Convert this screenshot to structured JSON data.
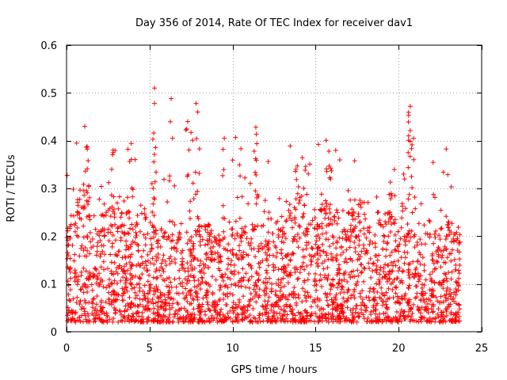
{
  "chart_data": {
    "type": "scatter",
    "title": "Day 356 of 2014, Rate Of TEC Index for receiver dav1",
    "xlabel": "GPS time / hours",
    "ylabel": "ROTI / TECUs",
    "xlim": [
      0,
      25
    ],
    "ylim": [
      0,
      0.6
    ],
    "xticks": [
      0,
      5,
      10,
      15,
      20,
      25
    ],
    "xtick_labels": [
      "0",
      "5",
      "10",
      "15",
      "20",
      "25"
    ],
    "yticks": [
      0,
      0.1,
      0.2,
      0.3,
      0.4,
      0.5,
      0.6
    ],
    "ytick_labels": [
      "0",
      "0.1",
      "0.2",
      "0.3",
      "0.4",
      "0.5",
      "0.6"
    ],
    "grid": true,
    "marker": "plus",
    "series": [
      {
        "name": "ROTI",
        "color": "#ff0000",
        "x_range": [
          0,
          23.7
        ],
        "typical_band": [
          0.02,
          0.2
        ],
        "peaks": [
          {
            "x": 1.1,
            "y": 0.43
          },
          {
            "x": 1.2,
            "y": 0.386
          },
          {
            "x": 1.3,
            "y": 0.358
          },
          {
            "x": 2.8,
            "y": 0.38
          },
          {
            "x": 3.7,
            "y": 0.382
          },
          {
            "x": 3.9,
            "y": 0.394
          },
          {
            "x": 5.3,
            "y": 0.51
          },
          {
            "x": 5.3,
            "y": 0.478
          },
          {
            "x": 5.2,
            "y": 0.403
          },
          {
            "x": 6.3,
            "y": 0.488
          },
          {
            "x": 7.3,
            "y": 0.44
          },
          {
            "x": 7.5,
            "y": 0.417
          },
          {
            "x": 7.8,
            "y": 0.478
          },
          {
            "x": 7.9,
            "y": 0.46
          },
          {
            "x": 9.5,
            "y": 0.405
          },
          {
            "x": 10.5,
            "y": 0.383
          },
          {
            "x": 11.4,
            "y": 0.428
          },
          {
            "x": 11.3,
            "y": 0.378
          },
          {
            "x": 13.9,
            "y": 0.347
          },
          {
            "x": 14.4,
            "y": 0.346
          },
          {
            "x": 15.8,
            "y": 0.378
          },
          {
            "x": 19.5,
            "y": 0.313
          },
          {
            "x": 20.7,
            "y": 0.472
          },
          {
            "x": 20.6,
            "y": 0.453
          },
          {
            "x": 20.6,
            "y": 0.41
          },
          {
            "x": 20.9,
            "y": 0.405
          },
          {
            "x": 20.3,
            "y": 0.33
          },
          {
            "x": 23.0,
            "y": 0.23
          }
        ]
      }
    ]
  }
}
